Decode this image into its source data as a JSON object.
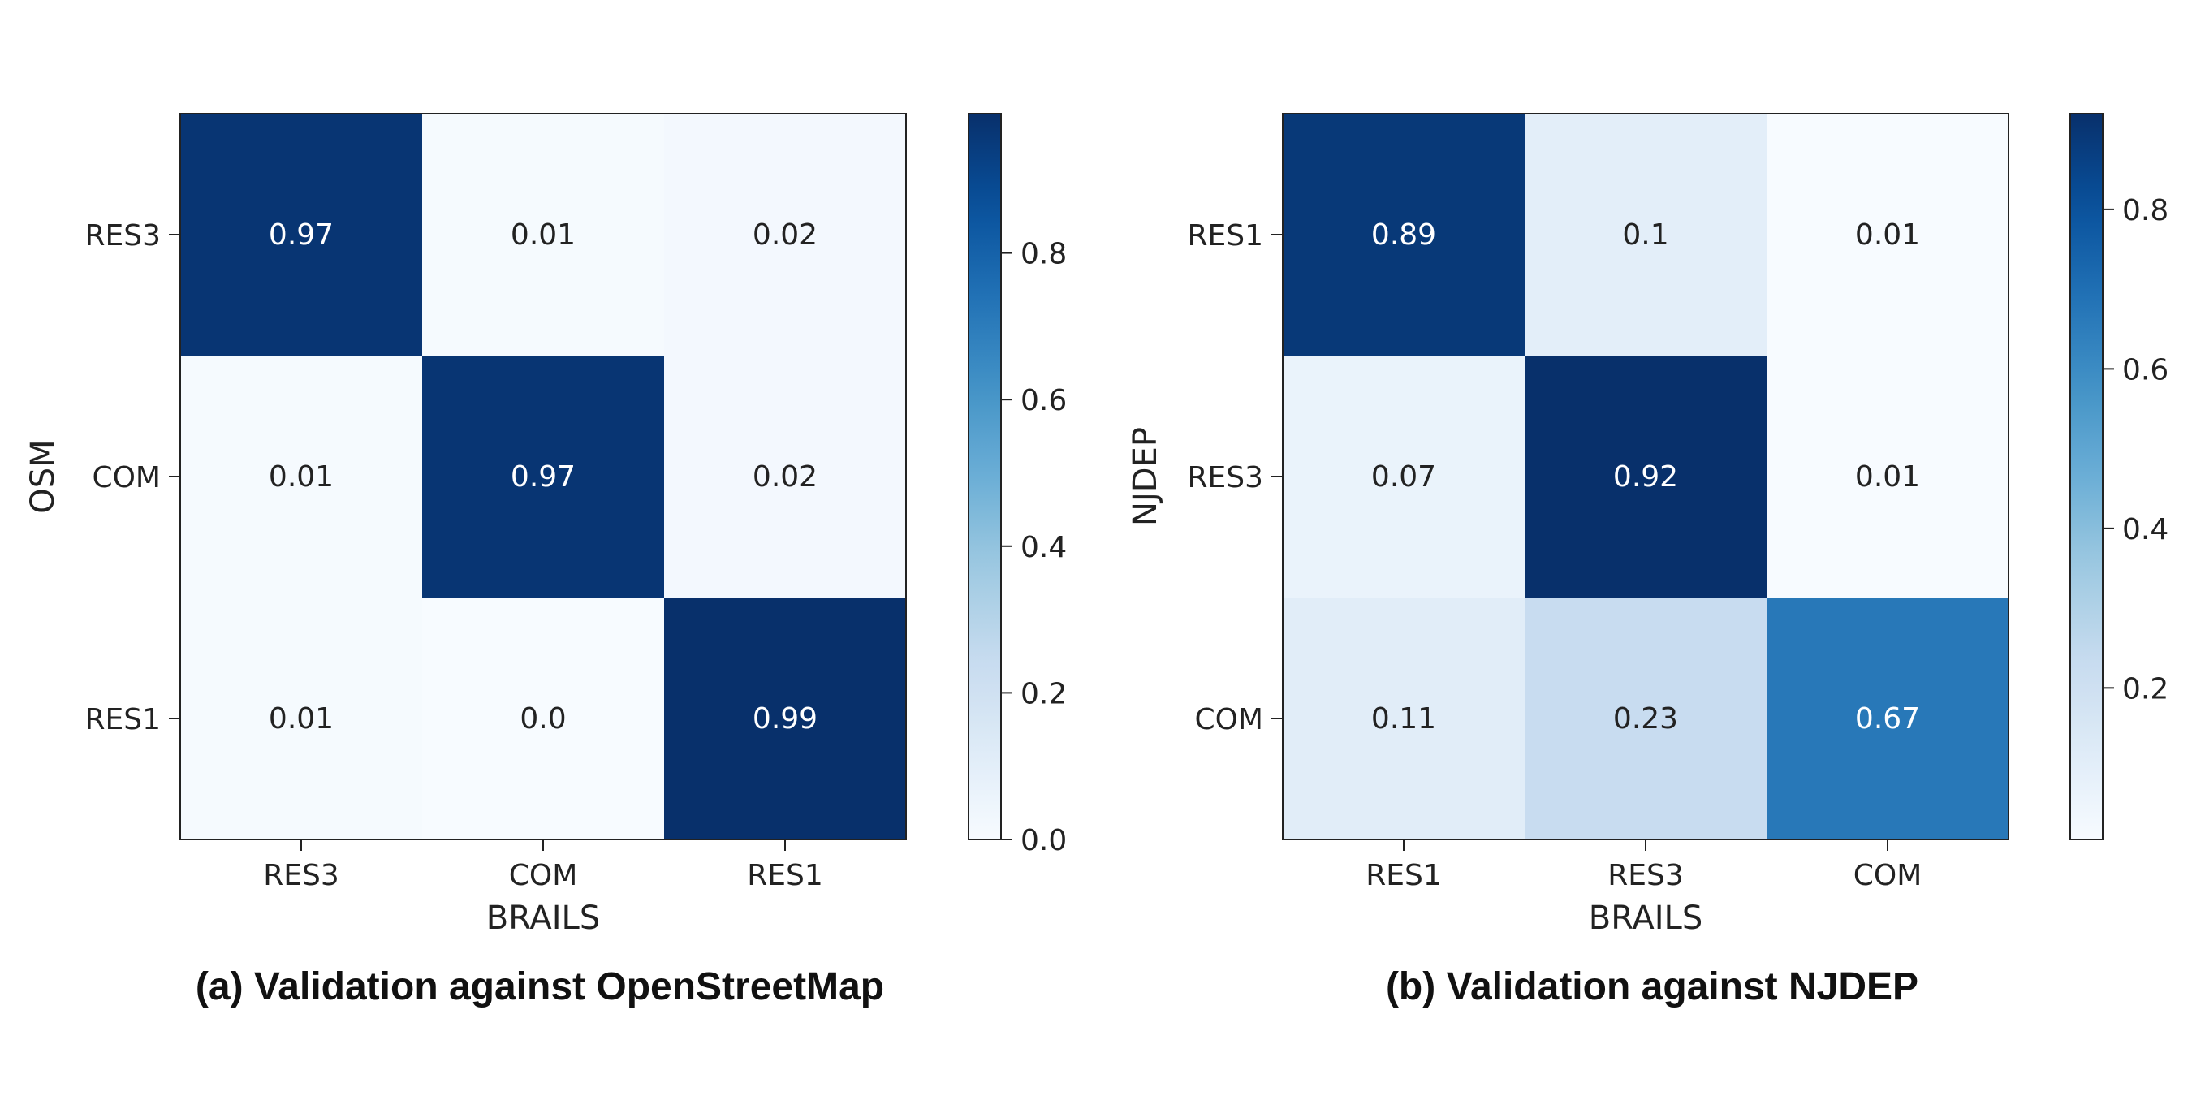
{
  "chart_data": [
    {
      "type": "heatmap",
      "xlabel": "BRAILS",
      "ylabel": "OSM",
      "x_categories": [
        "RES3",
        "COM",
        "RES1"
      ],
      "y_categories": [
        "RES3",
        "COM",
        "RES1"
      ],
      "values": [
        [
          0.97,
          0.01,
          0.02
        ],
        [
          0.01,
          0.97,
          0.02
        ],
        [
          0.01,
          0.0,
          0.99
        ]
      ],
      "value_labels": [
        [
          "0.97",
          "0.01",
          "0.02"
        ],
        [
          "0.01",
          "0.97",
          "0.02"
        ],
        [
          "0.01",
          "0.0",
          "0.99"
        ]
      ],
      "colormap": "Blues",
      "colorbar": {
        "range": [
          0.0,
          0.99
        ],
        "ticks": [
          "0.0",
          "0.2",
          "0.4",
          "0.6",
          "0.8"
        ]
      },
      "caption": "(a) Validation against OpenStreetMap"
    },
    {
      "type": "heatmap",
      "xlabel": "BRAILS",
      "ylabel": "NJDEP",
      "x_categories": [
        "RES1",
        "RES3",
        "COM"
      ],
      "y_categories": [
        "RES1",
        "RES3",
        "COM"
      ],
      "values": [
        [
          0.89,
          0.1,
          0.01
        ],
        [
          0.07,
          0.92,
          0.01
        ],
        [
          0.11,
          0.23,
          0.67
        ]
      ],
      "value_labels": [
        [
          "0.89",
          "0.1",
          "0.01"
        ],
        [
          "0.07",
          "0.92",
          "0.01"
        ],
        [
          "0.11",
          "0.23",
          "0.67"
        ]
      ],
      "colormap": "Blues",
      "colorbar": {
        "range": [
          0.01,
          0.92
        ],
        "ticks": [
          "0.2",
          "0.4",
          "0.6",
          "0.8"
        ]
      },
      "caption": "(b) Validation against NJDEP"
    }
  ]
}
